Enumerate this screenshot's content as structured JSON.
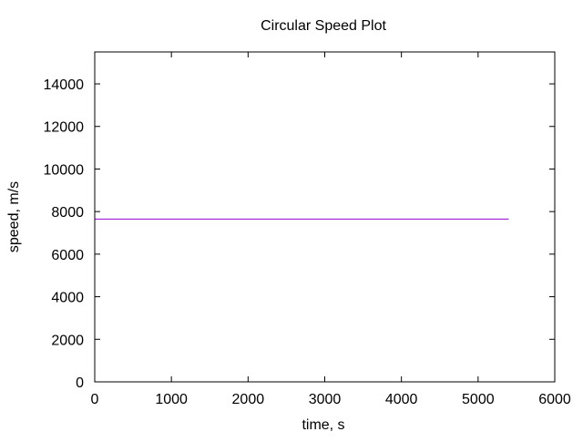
{
  "chart_data": {
    "type": "line",
    "title": "Circular Speed Plot",
    "xlabel": "time, s",
    "ylabel": "speed, m/s",
    "xlim": [
      0,
      6000
    ],
    "ylim": [
      0,
      15500
    ],
    "xticks": [
      0,
      1000,
      2000,
      3000,
      4000,
      5000,
      6000
    ],
    "yticks": [
      0,
      2000,
      4000,
      6000,
      8000,
      10000,
      12000,
      14000
    ],
    "grid": false,
    "legend": "none",
    "series": [
      {
        "color": "#9400d3",
        "x": [
          0,
          5400
        ],
        "y": [
          7650,
          7650
        ]
      }
    ]
  }
}
